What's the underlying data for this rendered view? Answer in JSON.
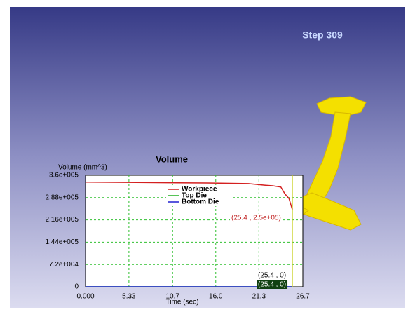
{
  "viewport": {
    "step_label": "Step 309"
  },
  "chart_data": {
    "type": "line",
    "title": "Volume",
    "y_label": "Volume (mm^3)",
    "x_label": "Time (sec)",
    "xlim": [
      0,
      26.7
    ],
    "ylim": [
      0,
      360000
    ],
    "xticks": [
      {
        "value": 0,
        "label": "0.000"
      },
      5.33,
      10.7,
      {
        "value": 16,
        "label": "16.0"
      },
      21.3,
      26.7
    ],
    "yticks": [
      0,
      {
        "value": 72000,
        "label": "7.2e+004"
      },
      {
        "value": 144000,
        "label": "1.44e+005"
      },
      {
        "value": 216000,
        "label": "2.16e+005"
      },
      {
        "value": 288000,
        "label": "2.88e+005"
      },
      {
        "value": 360000,
        "label": "3.6e+005"
      }
    ],
    "grid": true,
    "series": [
      {
        "name": "Workpiece",
        "color": "#d42020",
        "x": [
          0,
          5,
          10,
          15,
          20,
          22,
          23,
          24,
          24.5,
          25,
          25.4
        ],
        "values": [
          338000,
          337000,
          336000,
          335000,
          333000,
          328000,
          326000,
          322000,
          300000,
          285000,
          250000
        ]
      },
      {
        "name": "Top Die",
        "color": "#20b020",
        "x": [
          0,
          25.4
        ],
        "values": [
          0,
          0
        ]
      },
      {
        "name": "Bottom Die",
        "color": "#2020d0",
        "x": [
          0,
          25.4
        ],
        "values": [
          0,
          0
        ]
      }
    ],
    "cursor_x": 25.4,
    "annotations": [
      "(25.4 , 2.5e+05)",
      "(25.4 , 0)",
      "(25.4 , 0)"
    ]
  }
}
